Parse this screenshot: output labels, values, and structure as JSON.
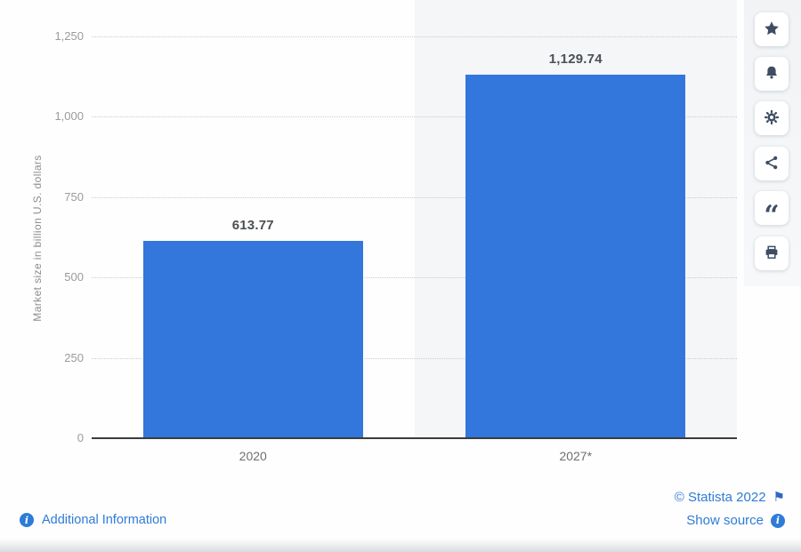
{
  "chart_data": {
    "type": "bar",
    "title": "",
    "categories": [
      "2020",
      "2027*"
    ],
    "values": [
      613.77,
      1129.74
    ],
    "value_labels": [
      "613.77",
      "1,129.74"
    ],
    "xlabel": "",
    "ylabel": "Market size in billion U.S. dollars",
    "ylim": [
      0,
      1250
    ],
    "yticks": [
      0,
      250,
      500,
      750,
      1000,
      1250
    ],
    "ytick_labels": [
      "0",
      "250",
      "500",
      "750",
      "1,000",
      "1,250"
    ],
    "grid": "horizontal-dotted",
    "legend": null,
    "bar_color": "#3377dd",
    "band_highlight_color": "#f4f6f8"
  },
  "sidebar": {
    "buttons": [
      {
        "name": "favorite",
        "icon": "star-icon"
      },
      {
        "name": "notifications",
        "icon": "bell-icon"
      },
      {
        "name": "settings",
        "icon": "gear-icon"
      },
      {
        "name": "share",
        "icon": "share-icon"
      },
      {
        "name": "cite",
        "icon": "quote-icon"
      },
      {
        "name": "print",
        "icon": "printer-icon"
      }
    ]
  },
  "footer": {
    "additional_information_label": "Additional Information",
    "copyright_label": "© Statista 2022",
    "show_source_label": "Show source"
  },
  "colors": {
    "bar": "#3377dd",
    "link": "#2e7cd6",
    "toolbar_icon": "#3e4d63",
    "axis_line": "#3c3c3c",
    "tick_label": "#9a9a9a",
    "value_label": "#4b5055"
  }
}
